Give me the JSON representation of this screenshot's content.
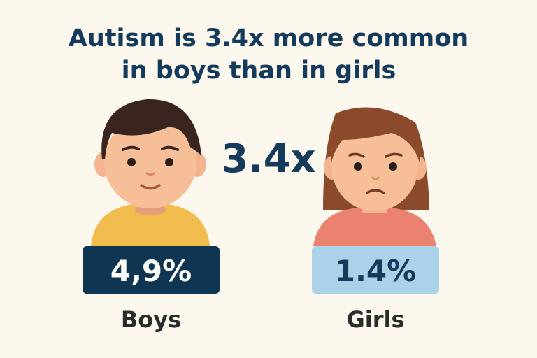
{
  "title": [
    "Autism is 3.4x more common",
    "in boys than in girls"
  ],
  "ratio": "3.4x",
  "groups": [
    {
      "value": "4,9%",
      "label": "Boys"
    },
    {
      "value": "1.4%",
      "label": "Girls"
    }
  ]
}
